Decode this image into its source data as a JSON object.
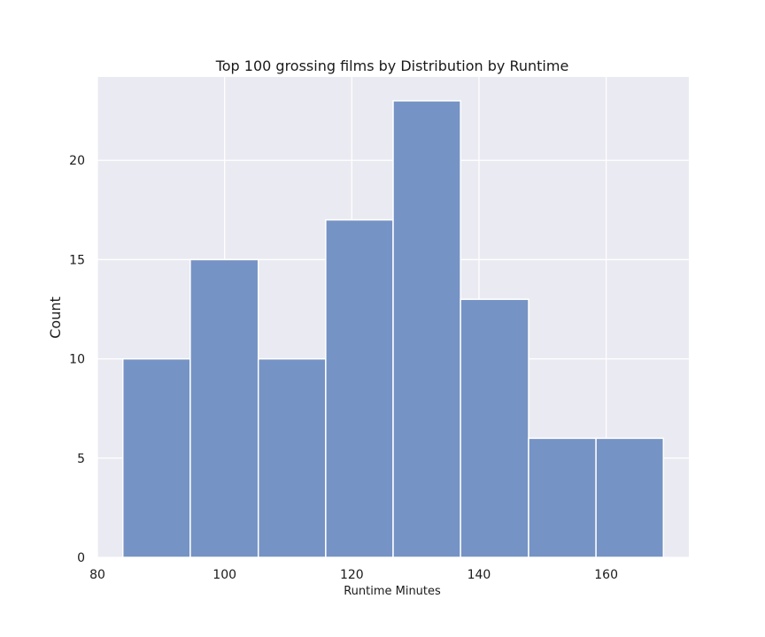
{
  "chart_data": {
    "type": "bar",
    "subtype": "histogram",
    "title": "Top 100 grossing films by Distribution by Runtime",
    "xlabel": "Runtime Minutes",
    "ylabel": "Count",
    "xlim": [
      80,
      173
    ],
    "ylim": [
      0,
      24.2
    ],
    "x_ticks": [
      80,
      100,
      120,
      140,
      160
    ],
    "y_ticks": [
      0,
      5,
      10,
      15,
      20
    ],
    "grid": true,
    "bins": [
      {
        "start": 84.0,
        "end": 94.6,
        "count": 10
      },
      {
        "start": 94.6,
        "end": 105.3,
        "count": 15
      },
      {
        "start": 105.3,
        "end": 115.9,
        "count": 10
      },
      {
        "start": 115.9,
        "end": 126.5,
        "count": 17
      },
      {
        "start": 126.5,
        "end": 137.1,
        "count": 23
      },
      {
        "start": 137.1,
        "end": 147.8,
        "count": 13
      },
      {
        "start": 147.8,
        "end": 158.4,
        "count": 6
      },
      {
        "start": 158.4,
        "end": 169.0,
        "count": 6
      }
    ],
    "colors": {
      "bar": "#7593c4",
      "bar_edge": "#ffffff",
      "background": "#eaeaf2",
      "grid": "#ffffff"
    }
  }
}
